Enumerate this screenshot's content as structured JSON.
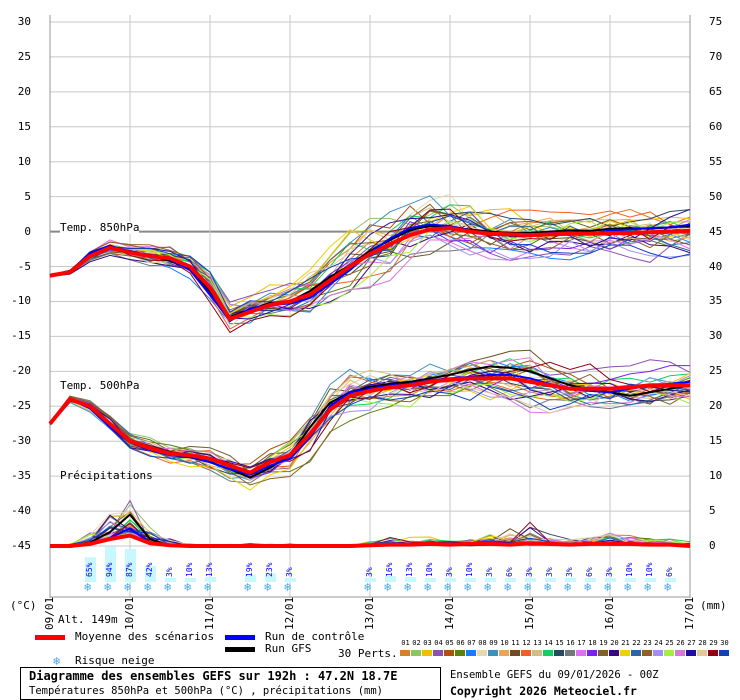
{
  "chart_data": {
    "type": "line",
    "title": "Diagramme des ensembles GEFS sur 192h : 47.2N 18.7E",
    "subtitle": "Températures 850hPa et 500hPa (°C) , précipitations (mm)",
    "run_info": "Ensemble GEFS du 09/01/2026 - 00Z",
    "copyright": "Copyright 2026 Meteociel.fr",
    "altitude": "Alt. 149m",
    "left_unit": "(°C)",
    "right_unit": "(mm)",
    "left_ticks": [
      "30",
      "25",
      "20",
      "15",
      "10",
      "5",
      "0",
      "-5",
      "-10",
      "-15",
      "-20",
      "-25",
      "-30",
      "-35",
      "-40",
      "-45"
    ],
    "right_ticks": [
      "75",
      "70",
      "65",
      "60",
      "55",
      "50",
      "45",
      "40",
      "35",
      "30",
      "25",
      "20",
      "15",
      "10",
      "5",
      "0"
    ],
    "ylim_temp": [
      -45,
      30
    ],
    "ylim_precip": [
      0,
      75
    ],
    "dates": [
      "09/01",
      "10/01",
      "11/01",
      "12/01",
      "13/01",
      "14/01",
      "15/01",
      "16/01",
      "17/01"
    ],
    "step_hours": 6,
    "panel_labels": {
      "t850": "Temp. 850hPa",
      "t500": "Temp. 500hPa",
      "precip": "Précipitations"
    },
    "t850_mean": [
      -6.3,
      -5.8,
      -3.5,
      -2.3,
      -3,
      -3.5,
      -3.8,
      -5,
      -8,
      -12.5,
      -11.5,
      -10.5,
      -10,
      -9,
      -7,
      -5,
      -3.2,
      -1.8,
      -0.5,
      0.3,
      0.5,
      0,
      -0.3,
      -0.4,
      -0.5,
      -0.4,
      -0.3,
      -0.3,
      -0.2,
      -0.2,
      -0.1,
      0,
      0.1
    ],
    "t850_control": [
      -6.3,
      -5.8,
      -3,
      -2,
      -3,
      -3.3,
      -4,
      -5.5,
      -9,
      -12.8,
      -11,
      -10.5,
      -10.3,
      -9.5,
      -7.5,
      -5.5,
      -3,
      -1,
      0.5,
      1,
      0.8,
      0.2,
      -0.5,
      -0.3,
      -0.6,
      -0.2,
      0,
      -0.4,
      0.2,
      0.3,
      0.5,
      0.6,
      1
    ],
    "t850_gfs": [
      -6.3,
      -5.6,
      -3.2,
      -2.2,
      -2.8,
      -3.4,
      -4.2,
      -5.3,
      -8.6,
      -12.2,
      -11.2,
      -10.2,
      -10,
      -8.5,
      -6.5,
      -4.8,
      -2.8,
      -1.2,
      0.2,
      0.8,
      0.6,
      0.3,
      0,
      -0.2,
      -0.2,
      0,
      0.2,
      0.1,
      0.4,
      0.5,
      0.4,
      0.6,
      0.8
    ],
    "t850_spread": [
      0.2,
      0.3,
      0.6,
      0.8,
      0.8,
      0.9,
      1,
      1.2,
      1.8,
      1.5,
      1.5,
      1.6,
      1.8,
      2.2,
      2.5,
      2.8,
      3,
      3.2,
      3.2,
      3,
      3,
      2.8,
      2.5,
      2.5,
      2.3,
      2.2,
      2.2,
      2.2,
      2.2,
      2.2,
      2.2,
      2.2,
      2.3
    ],
    "t500_mean": [
      -27.5,
      -24,
      -25,
      -27.5,
      -30,
      -31,
      -31.8,
      -32,
      -32.5,
      -33.5,
      -34.5,
      -33,
      -32,
      -29,
      -25.5,
      -23.5,
      -22.8,
      -22.3,
      -22,
      -21.5,
      -21.2,
      -21,
      -21,
      -21,
      -21.5,
      -22,
      -22.5,
      -22.5,
      -22.5,
      -22.3,
      -22,
      -22,
      -22
    ],
    "t500_control": [
      -27.5,
      -24,
      -25.3,
      -28,
      -30.2,
      -31.3,
      -32,
      -32.2,
      -33,
      -34,
      -34.8,
      -33.5,
      -32.5,
      -29.5,
      -25,
      -23,
      -22.5,
      -22,
      -21.8,
      -21.3,
      -21,
      -20.8,
      -20.5,
      -20.5,
      -21,
      -21.8,
      -22.5,
      -22.8,
      -23,
      -22.5,
      -22,
      -21.8,
      -21.5
    ],
    "t500_gfs": [
      -27.5,
      -24.2,
      -25,
      -27.8,
      -30,
      -31.2,
      -32,
      -32.3,
      -33,
      -34,
      -35.2,
      -33.8,
      -32,
      -28,
      -24.5,
      -23,
      -22.2,
      -21.8,
      -21.5,
      -21,
      -20.5,
      -19.8,
      -19.3,
      -19.5,
      -20,
      -21,
      -22,
      -22.5,
      -23,
      -23.5,
      -23,
      -22.5,
      -22
    ],
    "t500_spread": [
      0.3,
      0.4,
      0.6,
      0.8,
      0.8,
      0.9,
      1,
      1.2,
      1.3,
      1.4,
      1.5,
      1.6,
      1.8,
      2.4,
      2.6,
      2.4,
      2,
      2,
      2,
      2,
      2,
      2.2,
      2.3,
      2.4,
      2.5,
      2.4,
      2.2,
      2.2,
      2.2,
      2.1,
      2,
      2,
      2
    ],
    "precip_mean": [
      0,
      0,
      0.3,
      1,
      1.5,
      0.4,
      0.1,
      0,
      0,
      0,
      0,
      0,
      0,
      0,
      0,
      0,
      0.1,
      0.2,
      0.2,
      0.3,
      0.2,
      0.3,
      0.3,
      0.2,
      0.4,
      0.3,
      0.2,
      0.3,
      0.3,
      0.3,
      0.2,
      0.2,
      0
    ],
    "precip_control": [
      0,
      0,
      0.2,
      1.2,
      2.5,
      0.5,
      0,
      0,
      0,
      0,
      0,
      0,
      0,
      0,
      0,
      0,
      0,
      0.1,
      0.1,
      0.2,
      0.1,
      0.3,
      0.5,
      0.4,
      0.3,
      0.2,
      0.1,
      0.3,
      0.2,
      0.2,
      0.1,
      0.1,
      0
    ],
    "precip_gfs": [
      0,
      0,
      0.5,
      2,
      4.5,
      1,
      0,
      0,
      0,
      0,
      0,
      0,
      0,
      0,
      0,
      0,
      0,
      0.2,
      0.3,
      0.3,
      0.2,
      0.1,
      0.2,
      0.3,
      0.2,
      0.2,
      0.2,
      0.4,
      0.3,
      0.2,
      0.2,
      0.1,
      0
    ],
    "precip_spread": [
      0,
      0.2,
      1.2,
      3,
      3,
      1.5,
      0.6,
      0.2,
      0,
      0.2,
      0.3,
      0.2,
      0.2,
      0,
      0,
      0,
      0.3,
      0.6,
      0.5,
      0.5,
      0.4,
      0.6,
      1,
      1.2,
      2,
      0.8,
      0.5,
      0.6,
      1,
      0.8,
      0.6,
      0.5,
      0.3
    ],
    "snow_risk": [
      {
        "hour": 12,
        "pct": "65%"
      },
      {
        "hour": 18,
        "pct": "94%"
      },
      {
        "hour": 24,
        "pct": "87%"
      },
      {
        "hour": 30,
        "pct": "42%"
      },
      {
        "hour": 36,
        "pct": "3%"
      },
      {
        "hour": 42,
        "pct": "10%"
      },
      {
        "hour": 48,
        "pct": "13%"
      },
      {
        "hour": 60,
        "pct": "19%"
      },
      {
        "hour": 66,
        "pct": "23%"
      },
      {
        "hour": 72,
        "pct": "3%"
      },
      {
        "hour": 96,
        "pct": "3%"
      },
      {
        "hour": 102,
        "pct": "16%"
      },
      {
        "hour": 108,
        "pct": "13%"
      },
      {
        "hour": 114,
        "pct": "10%"
      },
      {
        "hour": 120,
        "pct": "3%"
      },
      {
        "hour": 126,
        "pct": "10%"
      },
      {
        "hour": 132,
        "pct": "3%"
      },
      {
        "hour": 138,
        "pct": "6%"
      },
      {
        "hour": 144,
        "pct": "3%"
      },
      {
        "hour": 150,
        "pct": "3%"
      },
      {
        "hour": 156,
        "pct": "3%"
      },
      {
        "hour": 162,
        "pct": "6%"
      },
      {
        "hour": 168,
        "pct": "3%"
      },
      {
        "hour": 174,
        "pct": "10%"
      },
      {
        "hour": 180,
        "pct": "10%"
      },
      {
        "hour": 186,
        "pct": "6%"
      }
    ],
    "legend": {
      "mean": "Moyenne des scénarios",
      "control": "Run de contrôle",
      "gfs": "Run GFS",
      "snow": "Risque neige",
      "perts": "30 Perts."
    },
    "colors": {
      "mean": "#ff0000",
      "control": "#0000ff",
      "gfs": "#000000"
    },
    "members": [
      {
        "id": "01",
        "color": "#e07a2e"
      },
      {
        "id": "02",
        "color": "#8cc46a"
      },
      {
        "id": "03",
        "color": "#f0c000"
      },
      {
        "id": "04",
        "color": "#8c50b0"
      },
      {
        "id": "05",
        "color": "#b05010"
      },
      {
        "id": "06",
        "color": "#5a8010"
      },
      {
        "id": "07",
        "color": "#1080ff"
      },
      {
        "id": "08",
        "color": "#e8d8b0"
      },
      {
        "id": "09",
        "color": "#3a90c0"
      },
      {
        "id": "10",
        "color": "#e8a850"
      },
      {
        "id": "11",
        "color": "#6a5020"
      },
      {
        "id": "12",
        "color": "#f06020"
      },
      {
        "id": "13",
        "color": "#d0c080"
      },
      {
        "id": "14",
        "color": "#10d060"
      },
      {
        "id": "15",
        "color": "#2a4860"
      },
      {
        "id": "16",
        "color": "#707880"
      },
      {
        "id": "17",
        "color": "#e070f0"
      },
      {
        "id": "18",
        "color": "#8020f0"
      },
      {
        "id": "19",
        "color": "#806030"
      },
      {
        "id": "20",
        "color": "#380880"
      },
      {
        "id": "21",
        "color": "#f0d000"
      },
      {
        "id": "22",
        "color": "#2868a0"
      },
      {
        "id": "23",
        "color": "#906020"
      },
      {
        "id": "24",
        "color": "#a090f0"
      },
      {
        "id": "25",
        "color": "#a0f040"
      },
      {
        "id": "26",
        "color": "#d878d8"
      },
      {
        "id": "27",
        "color": "#2010a0"
      },
      {
        "id": "28",
        "color": "#e0c8a0"
      },
      {
        "id": "29",
        "color": "#900010"
      },
      {
        "id": "30",
        "color": "#1040c0"
      }
    ]
  }
}
